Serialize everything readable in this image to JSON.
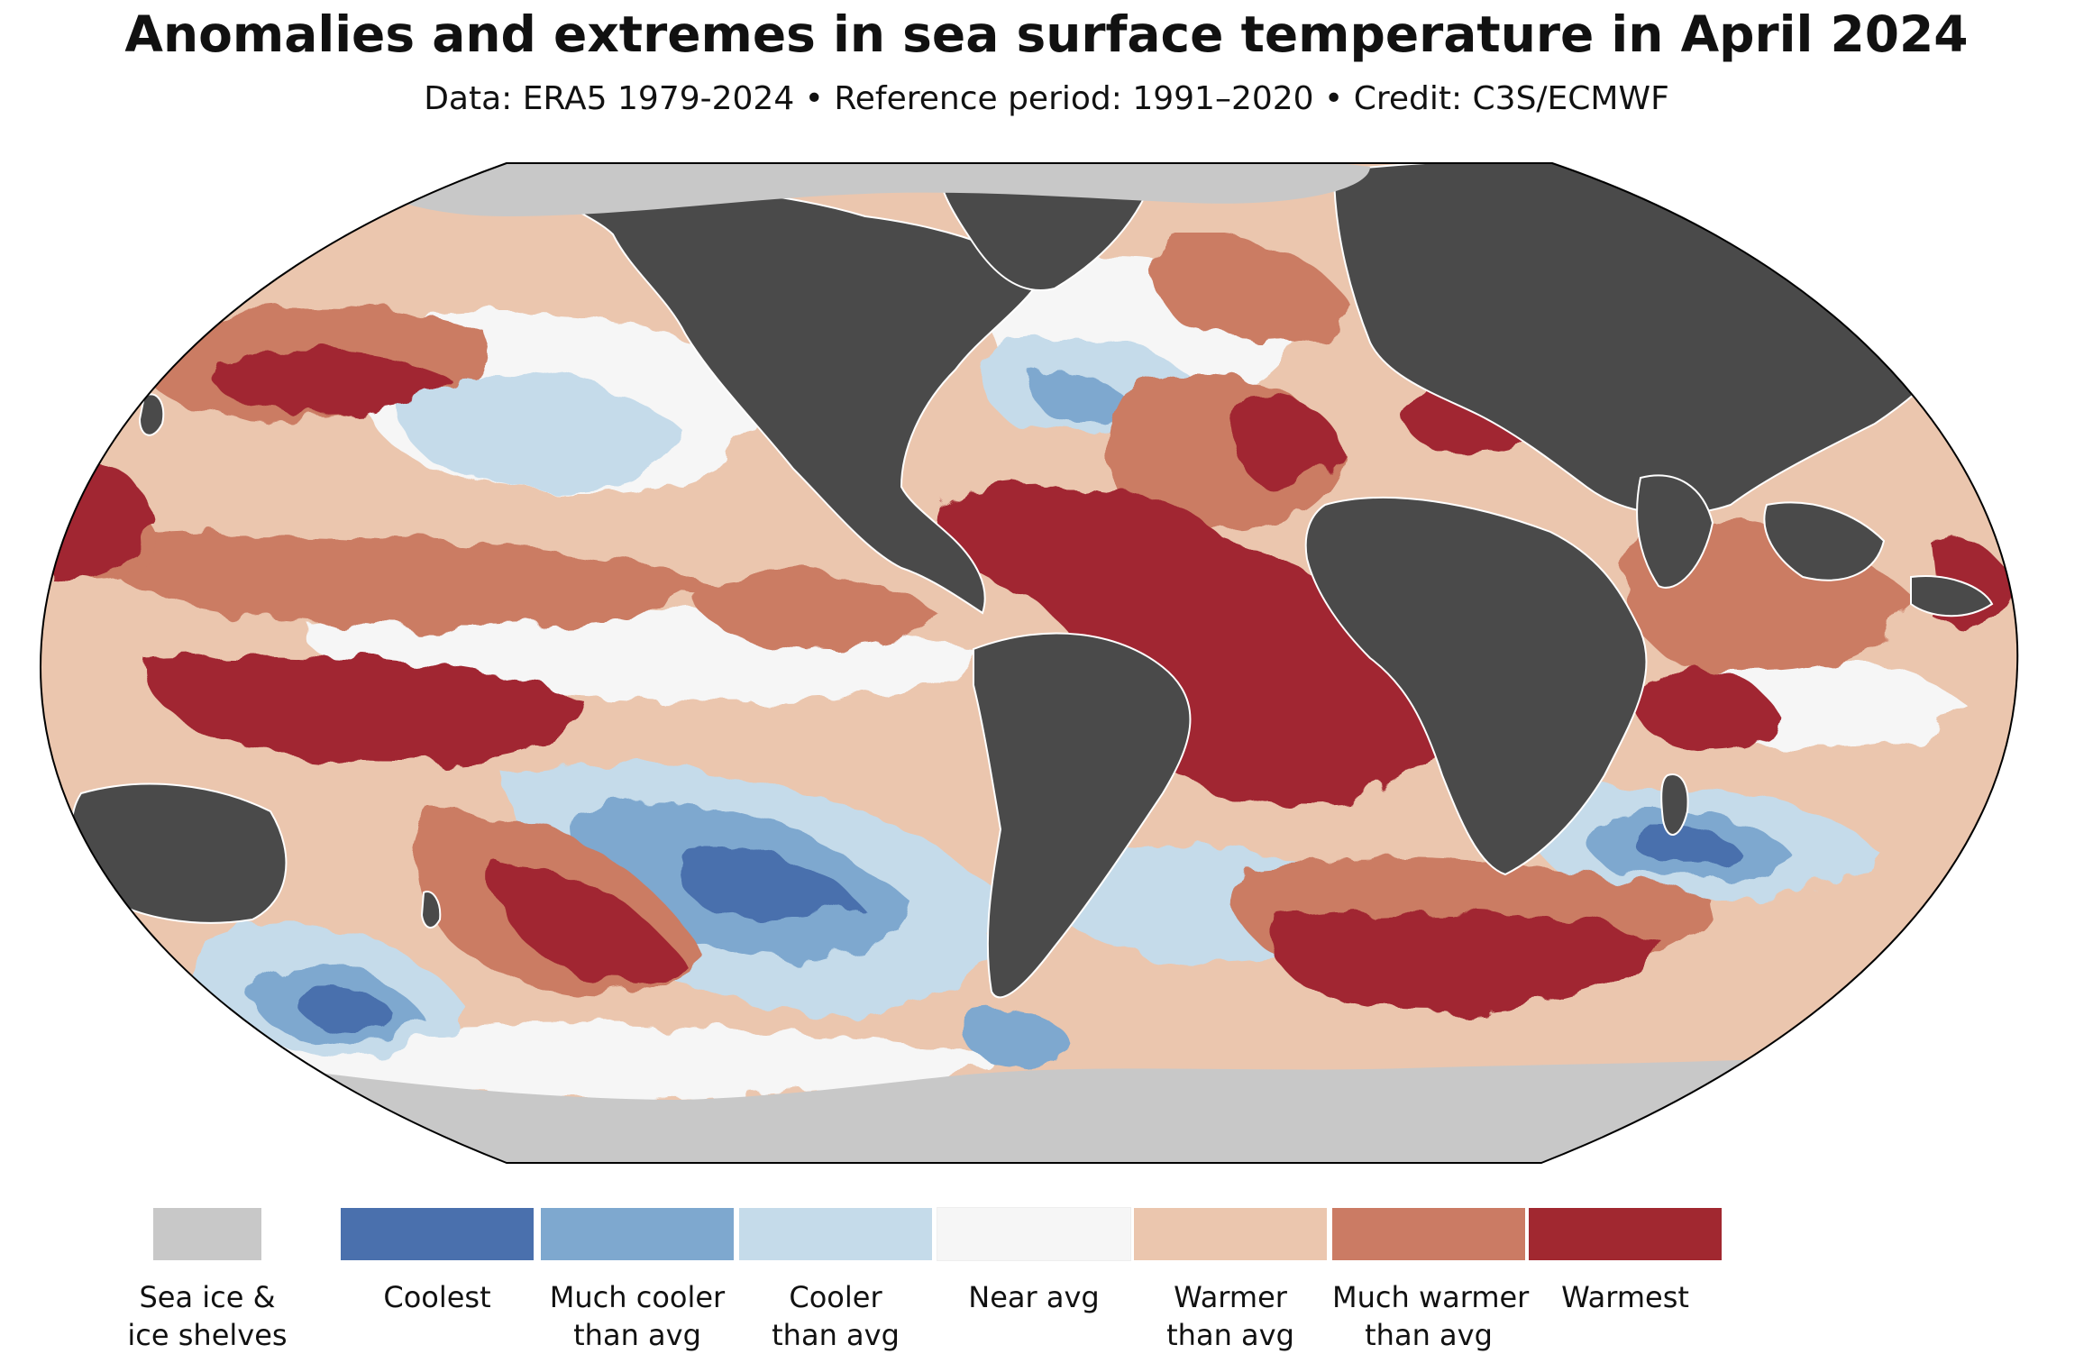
{
  "title": "Anomalies and extremes in sea surface temperature in April 2024",
  "subtitle": "Data: ERA5 1979-2024 • Reference period: 1991–2020 • Credit: C3S/ECMWF",
  "colors": {
    "background": "#ffffff",
    "land": "#4a4a4a",
    "sea_ice": "#c8c8c8",
    "coolest": "#4a70ad",
    "much_cooler": "#7ea8cf",
    "cooler": "#c5dbea",
    "near_avg": "#f6f6f6",
    "warmer": "#ebc6ae",
    "much_warmer": "#cb7b64",
    "warmest": "#a12830"
  },
  "legend": [
    {
      "line1": "Sea ice &",
      "line2": "ice shelves",
      "color": "#c8c8c8"
    },
    {
      "line1": "Coolest",
      "line2": "",
      "color": "#4a70ad"
    },
    {
      "line1": "Much cooler",
      "line2": "than avg",
      "color": "#7ea8cf"
    },
    {
      "line1": "Cooler",
      "line2": "than avg",
      "color": "#c5dbea"
    },
    {
      "line1": "Near avg",
      "line2": "",
      "color": "#f6f6f6"
    },
    {
      "line1": "Warmer",
      "line2": "than avg",
      "color": "#ebc6ae"
    },
    {
      "line1": "Much warmer",
      "line2": "than avg",
      "color": "#cb7b64"
    },
    {
      "line1": "Warmest",
      "line2": "",
      "color": "#a12830"
    }
  ]
}
